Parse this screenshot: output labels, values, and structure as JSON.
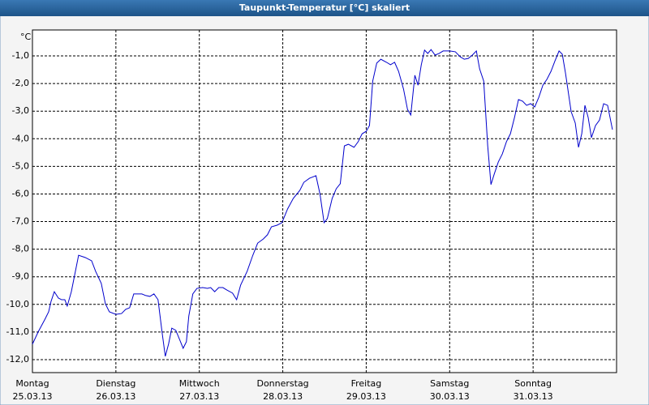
{
  "chart_data": {
    "type": "line",
    "title": "Taupunkt-Temperatur [°C] skaliert",
    "y_unit": "°C",
    "xlim": [
      0,
      7
    ],
    "ylim": [
      -12.47,
      -0.06
    ],
    "grid": true,
    "xticks": [
      {
        "value": 0,
        "label": "Montag"
      },
      {
        "value": 1,
        "label": "Dienstag"
      },
      {
        "value": 2,
        "label": "Mittwoch"
      },
      {
        "value": 3,
        "label": "Donnerstag"
      },
      {
        "value": 4,
        "label": "Freitag"
      },
      {
        "value": 5,
        "label": "Samstag"
      },
      {
        "value": 6,
        "label": "Sonntag"
      }
    ],
    "xtick_dates": [
      "25.03.13",
      "26.03.13",
      "27.03.13",
      "28.03.13",
      "29.03.13",
      "30.03.13",
      "31.03.13"
    ],
    "yticks": [
      {
        "value": -1,
        "label": "-1,0"
      },
      {
        "value": -2,
        "label": "-2,0"
      },
      {
        "value": -3,
        "label": "-3,0"
      },
      {
        "value": -4,
        "label": "-4,0"
      },
      {
        "value": -5,
        "label": "-5,0"
      },
      {
        "value": -6,
        "label": "-6,0"
      },
      {
        "value": -7,
        "label": "-7,0"
      },
      {
        "value": -8,
        "label": "-8,0"
      },
      {
        "value": -9,
        "label": "-9,0"
      },
      {
        "value": -10,
        "label": "-10,0"
      },
      {
        "value": -11,
        "label": "-11,0"
      },
      {
        "value": -12,
        "label": "-12,0"
      }
    ],
    "x": [
      0,
      0.068,
      0.146,
      0.194,
      0.223,
      0.262,
      0.311,
      0.35,
      0.388,
      0.417,
      0.466,
      0.505,
      0.553,
      0.631,
      0.709,
      0.757,
      0.825,
      0.874,
      0.922,
      1.0,
      1.068,
      1.117,
      1.165,
      1.214,
      1.311,
      1.359,
      1.408,
      1.456,
      1.505,
      1.553,
      1.592,
      1.631,
      1.67,
      1.718,
      1.767,
      1.806,
      1.845,
      1.874,
      1.922,
      1.971,
      2.039,
      2.097,
      2.136,
      2.184,
      2.233,
      2.282,
      2.33,
      2.398,
      2.447,
      2.495,
      2.573,
      2.641,
      2.699,
      2.767,
      2.816,
      2.864,
      2.932,
      2.99,
      3.058,
      3.126,
      3.204,
      3.252,
      3.32,
      3.398,
      3.447,
      3.495,
      3.534,
      3.592,
      3.641,
      3.689,
      3.738,
      3.786,
      3.854,
      3.903,
      3.951,
      4.0,
      4.039,
      4.078,
      4.126,
      4.175,
      4.243,
      4.291,
      4.34,
      4.388,
      4.447,
      4.495,
      4.534,
      4.583,
      4.621,
      4.66,
      4.699,
      4.738,
      4.777,
      4.825,
      4.874,
      4.922,
      5.0,
      5.068,
      5.126,
      5.175,
      5.223,
      5.272,
      5.32,
      5.359,
      5.408,
      5.456,
      5.495,
      5.534,
      5.583,
      5.631,
      5.68,
      5.728,
      5.777,
      5.825,
      5.874,
      5.922,
      5.971,
      6.019,
      6.068,
      6.117,
      6.165,
      6.214,
      6.262,
      6.311,
      6.35,
      6.388,
      6.456,
      6.505,
      6.544,
      6.583,
      6.621,
      6.66,
      6.699,
      6.748,
      6.796,
      6.845,
      6.893,
      6.951
    ],
    "series": [
      {
        "color": "#0000cc",
        "values": [
          -11.44,
          -11.0,
          -10.56,
          -10.27,
          -9.89,
          -9.54,
          -9.77,
          -9.83,
          -9.83,
          -10.06,
          -9.54,
          -8.95,
          -8.22,
          -8.3,
          -8.42,
          -8.8,
          -9.24,
          -9.98,
          -10.27,
          -10.36,
          -10.33,
          -10.18,
          -10.12,
          -9.62,
          -9.62,
          -9.68,
          -9.71,
          -9.62,
          -9.83,
          -11.0,
          -11.88,
          -11.44,
          -10.86,
          -10.94,
          -11.3,
          -11.59,
          -11.35,
          -10.42,
          -9.62,
          -9.42,
          -9.39,
          -9.42,
          -9.39,
          -9.54,
          -9.39,
          -9.39,
          -9.48,
          -9.59,
          -9.83,
          -9.3,
          -8.8,
          -8.22,
          -7.78,
          -7.63,
          -7.48,
          -7.19,
          -7.13,
          -7.04,
          -6.54,
          -6.16,
          -5.87,
          -5.58,
          -5.43,
          -5.34,
          -6.02,
          -7.04,
          -6.89,
          -6.16,
          -5.81,
          -5.63,
          -4.26,
          -4.2,
          -4.31,
          -4.11,
          -3.82,
          -3.73,
          -3.52,
          -1.91,
          -1.26,
          -1.12,
          -1.23,
          -1.32,
          -1.23,
          -1.56,
          -2.2,
          -2.94,
          -3.14,
          -1.7,
          -2.06,
          -1.32,
          -0.79,
          -0.91,
          -0.77,
          -0.97,
          -0.91,
          -0.82,
          -0.82,
          -0.85,
          -1.03,
          -1.12,
          -1.09,
          -0.97,
          -0.82,
          -1.47,
          -1.91,
          -4.26,
          -5.66,
          -5.28,
          -4.84,
          -4.55,
          -4.11,
          -3.82,
          -3.23,
          -2.58,
          -2.64,
          -2.79,
          -2.73,
          -2.85,
          -2.5,
          -2.06,
          -1.85,
          -1.56,
          -1.18,
          -0.82,
          -0.94,
          -1.62,
          -3.02,
          -3.43,
          -4.31,
          -3.82,
          -2.79,
          -3.23,
          -3.96,
          -3.52,
          -3.32,
          -2.73,
          -2.79,
          -3.67
        ]
      }
    ]
  }
}
